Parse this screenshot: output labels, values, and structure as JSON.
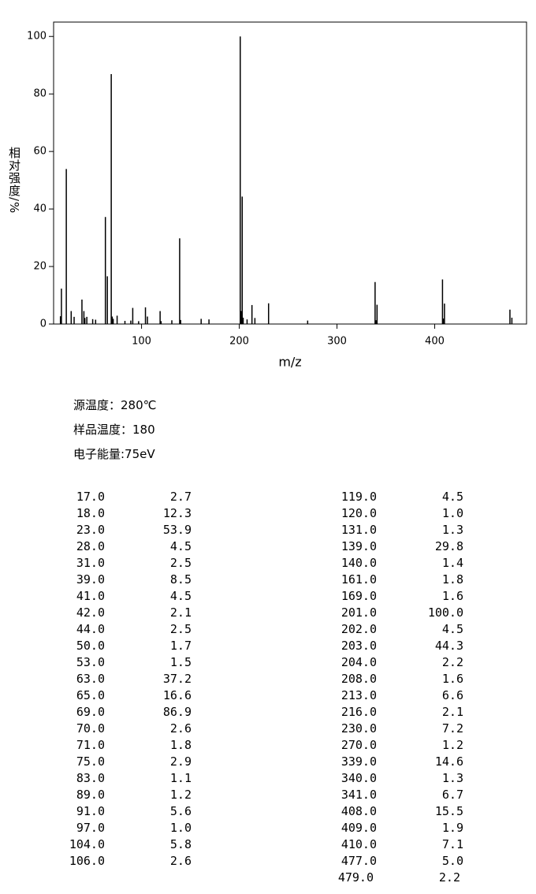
{
  "chart_data": {
    "type": "stem",
    "x_label": "m/z",
    "y_label": "相对强度/%",
    "xlim": [
      10,
      494
    ],
    "ylim": [
      0,
      105
    ],
    "xticks": [
      100,
      200,
      300,
      400
    ],
    "yticks": [
      0,
      20,
      40,
      60,
      80,
      100
    ],
    "color": "#000000",
    "x": [
      17,
      18,
      23,
      28,
      31,
      39,
      41,
      42,
      44,
      50,
      53,
      63,
      65,
      69,
      70,
      71,
      75,
      83,
      89,
      91,
      97,
      104,
      106,
      119,
      120,
      131,
      139,
      140,
      161,
      169,
      201,
      202,
      203,
      204,
      208,
      213,
      216,
      230,
      270,
      339,
      340,
      341,
      408,
      409,
      410,
      477,
      479
    ],
    "values": [
      2.7,
      12.3,
      53.9,
      4.5,
      2.5,
      8.5,
      4.5,
      2.1,
      2.5,
      1.7,
      1.5,
      37.2,
      16.6,
      86.9,
      2.6,
      1.8,
      2.9,
      1.1,
      1.2,
      5.6,
      1.0,
      5.8,
      2.6,
      4.5,
      1.0,
      1.3,
      29.8,
      1.4,
      1.8,
      1.6,
      100.0,
      4.5,
      44.3,
      2.2,
      1.6,
      6.6,
      2.1,
      7.2,
      1.2,
      14.6,
      1.3,
      6.7,
      15.5,
      1.9,
      7.1,
      5.0,
      2.2
    ],
    "x_labels": [
      "17.0",
      "18.0",
      "23.0",
      "28.0",
      "31.0",
      "39.0",
      "41.0",
      "42.0",
      "44.0",
      "50.0",
      "53.0",
      "63.0",
      "65.0",
      "69.0",
      "70.0",
      "71.0",
      "75.0",
      "83.0",
      "89.0",
      "91.0",
      "97.0",
      "104.0",
      "106.0",
      "119.0",
      "120.0",
      "131.0",
      "139.0",
      "140.0",
      "161.0",
      "169.0",
      "201.0",
      "202.0",
      "203.0",
      "204.0",
      "208.0",
      "213.0",
      "216.0",
      "230.0",
      "270.0",
      "339.0",
      "340.0",
      "341.0",
      "408.0",
      "409.0",
      "410.0",
      "477.0",
      "479.0"
    ],
    "value_labels": [
      "2.7",
      "12.3",
      "53.9",
      "4.5",
      "2.5",
      "8.5",
      "4.5",
      "2.1",
      "2.5",
      "1.7",
      "1.5",
      "37.2",
      "16.6",
      "86.9",
      "2.6",
      "1.8",
      "2.9",
      "1.1",
      "1.2",
      "5.6",
      "1.0",
      "5.8",
      "2.6",
      "4.5",
      "1.0",
      "1.3",
      "29.8",
      "1.4",
      "1.8",
      "1.6",
      "100.0",
      "4.5",
      "44.3",
      "2.2",
      "1.6",
      "6.6",
      "2.1",
      "7.2",
      "1.2",
      "14.6",
      "1.3",
      "6.7",
      "15.5",
      "1.9",
      "7.1",
      "5.0",
      "2.2"
    ]
  },
  "info": [
    "源温度：280℃",
    "样品温度：180",
    "电子能量:75eV"
  ]
}
